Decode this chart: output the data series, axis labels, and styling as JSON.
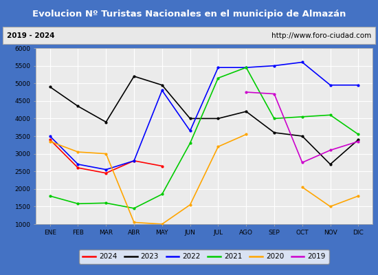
{
  "title": "Evolucion Nº Turistas Nacionales en el municipio de Almazán",
  "subtitle_left": "2019 - 2024",
  "subtitle_right": "http://www.foro-ciudad.com",
  "months": [
    "ENE",
    "FEB",
    "MAR",
    "ABR",
    "MAY",
    "JUN",
    "JUL",
    "AGO",
    "SEP",
    "OCT",
    "NOV",
    "DIC"
  ],
  "ylim": [
    1000,
    6000
  ],
  "yticks": [
    1000,
    1500,
    2000,
    2500,
    3000,
    3500,
    4000,
    4500,
    5000,
    5500,
    6000
  ],
  "series": {
    "2024": {
      "color": "#ff0000",
      "data": [
        3400,
        2600,
        2450,
        2800,
        2650,
        null,
        null,
        null,
        null,
        null,
        null,
        null
      ]
    },
    "2023": {
      "color": "#000000",
      "data": [
        4900,
        4350,
        3900,
        5200,
        4950,
        4000,
        4000,
        4200,
        3600,
        3500,
        2700,
        3400
      ]
    },
    "2022": {
      "color": "#0000ff",
      "data": [
        3500,
        2700,
        2550,
        2800,
        4800,
        3650,
        5450,
        5450,
        5500,
        5600,
        4950,
        4950
      ]
    },
    "2021": {
      "color": "#00cc00",
      "data": [
        1800,
        1580,
        1600,
        1450,
        1850,
        3300,
        5150,
        5450,
        4000,
        4050,
        4100,
        3550
      ]
    },
    "2020": {
      "color": "#ffa500",
      "data": [
        3350,
        3050,
        3000,
        1050,
        1000,
        1550,
        3200,
        3550,
        null,
        2050,
        1500,
        1800
      ]
    },
    "2019": {
      "color": "#cc00cc",
      "data": [
        null,
        null,
        null,
        null,
        null,
        null,
        null,
        4750,
        4700,
        2750,
        3100,
        3350
      ]
    }
  },
  "title_bg_color": "#4472c4",
  "title_text_color": "#ffffff",
  "subtitle_bg_color": "#e8e8e8",
  "plot_bg_color": "#ebebeb",
  "grid_color": "#ffffff",
  "outer_border_color": "#4472c4",
  "title_fontsize": 9.5,
  "subtitle_fontsize": 7.5,
  "axis_fontsize": 6.5,
  "legend_fontsize": 7.5,
  "legend_order": [
    "2024",
    "2023",
    "2022",
    "2021",
    "2020",
    "2019"
  ]
}
